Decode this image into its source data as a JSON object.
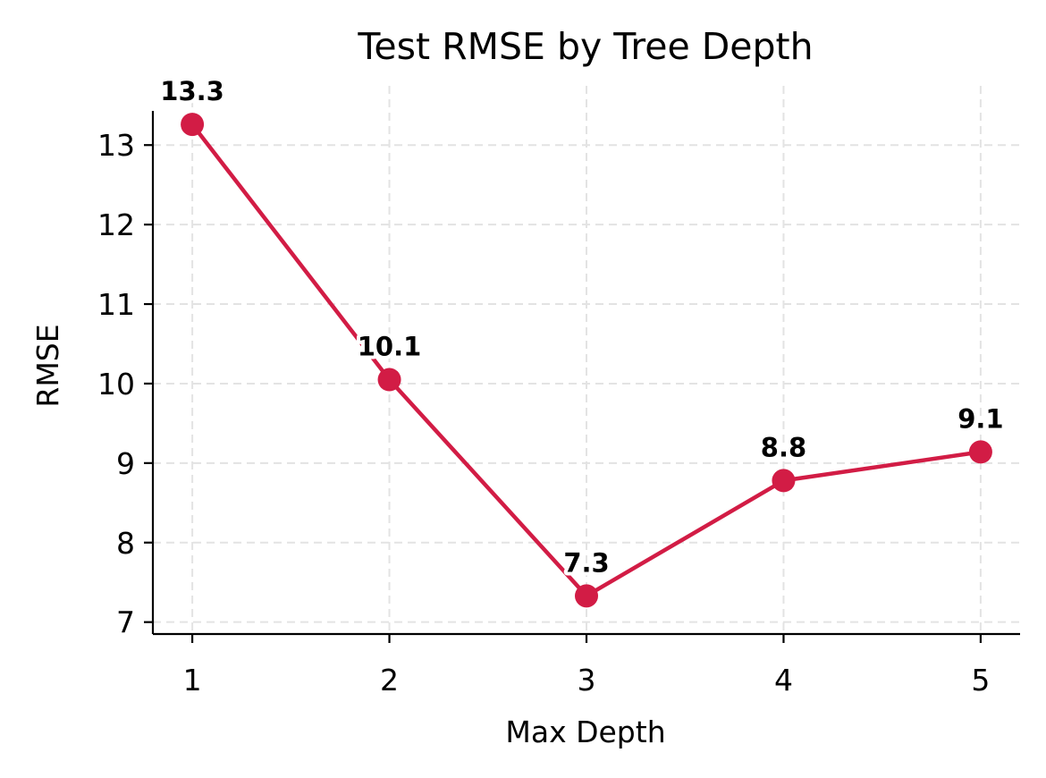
{
  "chart_data": {
    "type": "line",
    "title": "Test RMSE by Tree Depth",
    "xlabel": "Max Depth",
    "ylabel": "RMSE",
    "x": [
      1,
      2,
      3,
      4,
      5
    ],
    "x_ticks": [
      "1",
      "2",
      "3",
      "4",
      "5"
    ],
    "y_ticks": [
      "7",
      "8",
      "9",
      "10",
      "11",
      "12",
      "13"
    ],
    "xlim": [
      0.8,
      5.2
    ],
    "ylim": [
      6.85,
      13.43
    ],
    "grid": true,
    "series": [
      {
        "values": [
          13.26,
          10.05,
          7.33,
          8.78,
          9.14
        ],
        "labels": [
          "13.3",
          "10.1",
          "7.3",
          "8.8",
          "9.1"
        ]
      }
    ],
    "colors": {
      "line": "#d21c45",
      "marker": "#d21c45"
    }
  }
}
